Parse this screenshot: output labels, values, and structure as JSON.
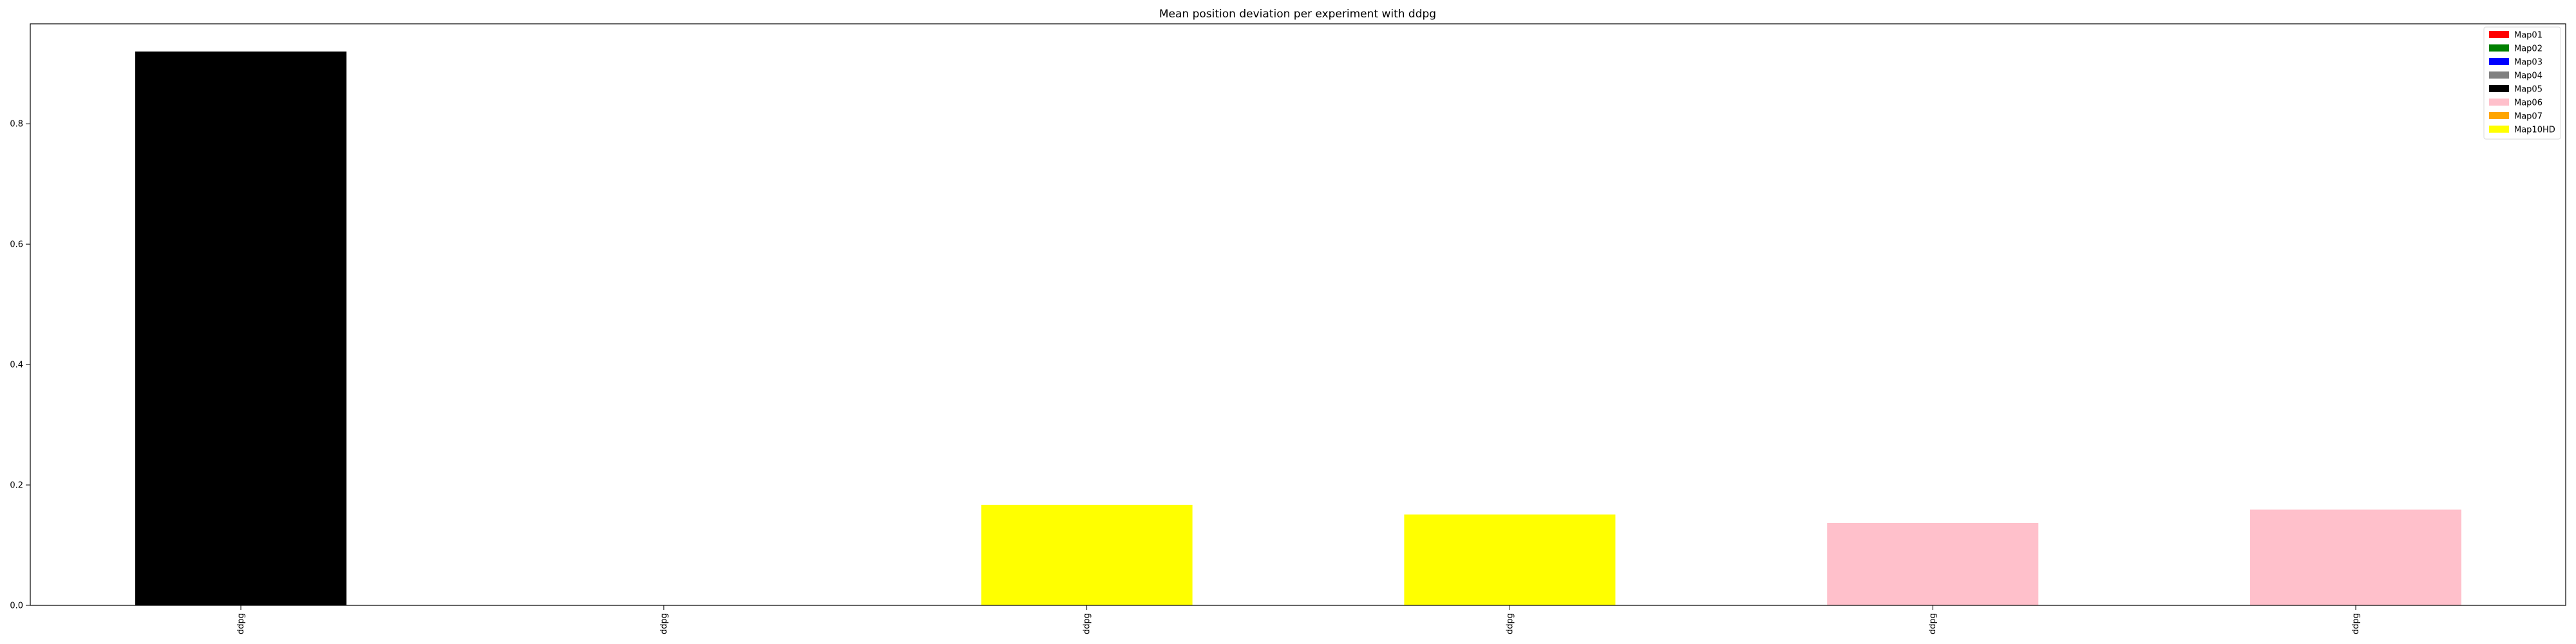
{
  "chart_data": {
    "type": "bar",
    "title": "Mean position deviation per experiment with ddpg",
    "xlabel": "",
    "ylabel": "",
    "ylim": [
      0,
      0.966
    ],
    "yticks": [
      0.0,
      0.2,
      0.4,
      0.6,
      0.8
    ],
    "categories": [
      "ddpg",
      "ddpg",
      "ddpg",
      "ddpg",
      "ddpg",
      "ddpg"
    ],
    "values": [
      0.92,
      0.0,
      0.167,
      0.151,
      0.137,
      0.159
    ],
    "bar_colors": [
      "#000000",
      "#000000",
      "#ffff00",
      "#ffff00",
      "#ffc0cb",
      "#ffc0cb"
    ],
    "grid": false,
    "legend": {
      "placement": "top-right",
      "entries": [
        {
          "label": "Map01",
          "color": "#ff0000"
        },
        {
          "label": "Map02",
          "color": "#008000"
        },
        {
          "label": "Map03",
          "color": "#0000ff"
        },
        {
          "label": "Map04",
          "color": "#808080"
        },
        {
          "label": "Map05",
          "color": "#000000"
        },
        {
          "label": "Map06",
          "color": "#ffc0cb"
        },
        {
          "label": "Map07",
          "color": "#ffa500"
        },
        {
          "label": "Map10HD",
          "color": "#ffff00"
        }
      ]
    }
  }
}
